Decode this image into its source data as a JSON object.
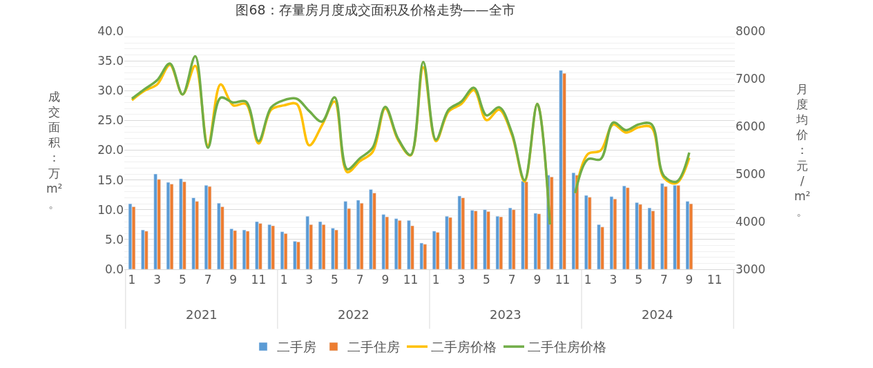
{
  "chart_data": {
    "type": "bar",
    "title": "图68：存量房月度成交面积及价格走势——全市",
    "ylabel": "成交面积：万m²。",
    "y2label": "月度均价：元/m²。",
    "categories": [
      "1",
      null,
      "3",
      null,
      "5",
      null,
      "7",
      null,
      "9",
      null,
      "11",
      null,
      "1",
      null,
      "3",
      null,
      "5",
      null,
      "7",
      null,
      "9",
      null,
      "11",
      null,
      "1",
      null,
      "3",
      null,
      "5",
      null,
      "7",
      null,
      "9",
      null,
      "11",
      null,
      "1",
      null,
      "3",
      null,
      "5",
      null,
      "7",
      null,
      "9",
      null,
      "11",
      null
    ],
    "annotations": [
      "2021",
      "2022",
      "2023",
      "2024"
    ],
    "series": [
      {
        "name": "二手房",
        "color": "#5b9bd5",
        "values": [
          11.0,
          6.6,
          16.0,
          14.6,
          15.2,
          12.0,
          14.1,
          11.1,
          6.8,
          6.6,
          8.0,
          7.5,
          6.3,
          4.7,
          8.9,
          8.0,
          6.9,
          11.4,
          11.6,
          13.4,
          9.2,
          8.5,
          8.2,
          4.4,
          6.4,
          8.9,
          12.3,
          9.9,
          10.0,
          8.9,
          10.3,
          14.8,
          9.4,
          15.8,
          33.4,
          16.2,
          12.4,
          7.5,
          12.2,
          14.0,
          11.2,
          10.3,
          14.4,
          14.1,
          11.4,
          null,
          null,
          null
        ]
      },
      {
        "name": "二手住房",
        "color": "#ed7d31",
        "values": [
          10.5,
          6.4,
          15.1,
          14.3,
          14.7,
          11.4,
          13.9,
          10.5,
          6.5,
          6.4,
          7.7,
          7.3,
          6.0,
          4.6,
          7.5,
          7.5,
          6.6,
          10.2,
          11.1,
          12.8,
          8.8,
          8.2,
          7.3,
          4.2,
          6.2,
          8.7,
          12.0,
          9.8,
          9.7,
          8.8,
          10.0,
          14.7,
          9.3,
          15.5,
          32.9,
          15.8,
          12.1,
          7.1,
          11.8,
          13.7,
          10.9,
          9.8,
          13.9,
          14.1,
          11.0,
          null,
          null,
          null
        ]
      },
      {
        "name": "二手房价格",
        "type": "line",
        "axis": "y2",
        "color": "#ffc000",
        "values": [
          6550,
          6750,
          6880,
          7290,
          6670,
          7270,
          5600,
          6880,
          6440,
          6470,
          5640,
          6350,
          6440,
          6470,
          5600,
          6020,
          6520,
          5040,
          5270,
          5460,
          6380,
          5720,
          5390,
          7240,
          5690,
          6310,
          6470,
          6760,
          6130,
          6350,
          5820,
          4840,
          6470,
          3940,
          null,
          4600,
          5420,
          5490,
          6040,
          5870,
          5980,
          5980,
          4920,
          4810,
          5340,
          null,
          null,
          null
        ]
      },
      {
        "name": "二手住房价格",
        "type": "line",
        "axis": "y2",
        "color": "#70ad47",
        "values": [
          6580,
          6780,
          6970,
          7320,
          6670,
          7470,
          5550,
          6600,
          6500,
          6520,
          5690,
          6400,
          6550,
          6580,
          6320,
          6100,
          6610,
          5100,
          5330,
          5550,
          6410,
          5750,
          5400,
          7350,
          5720,
          6350,
          6520,
          6810,
          6230,
          6400,
          5860,
          4870,
          6470,
          3940,
          null,
          4600,
          5310,
          5310,
          6080,
          5920,
          6040,
          6050,
          4960,
          4840,
          5450,
          null,
          null,
          null
        ]
      }
    ],
    "ylim": [
      0,
      40
    ],
    "yticks": [
      {
        "value": 0,
        "label": "0.0"
      },
      {
        "value": 5,
        "label": "5.0"
      },
      {
        "value": 10,
        "label": "10.0"
      },
      {
        "value": 15,
        "label": "15.0"
      },
      {
        "value": 20,
        "label": "20.0"
      },
      {
        "value": 25,
        "label": "25.0"
      },
      {
        "value": 30,
        "label": "30.0"
      },
      {
        "value": 35,
        "label": "35.0"
      },
      {
        "value": 40,
        "label": "40.0"
      }
    ],
    "y2lim": [
      3000,
      8000
    ],
    "y2ticks": [
      3000,
      4000,
      5000,
      6000,
      7000,
      8000
    ],
    "grid": "y",
    "legend": "bottom"
  }
}
